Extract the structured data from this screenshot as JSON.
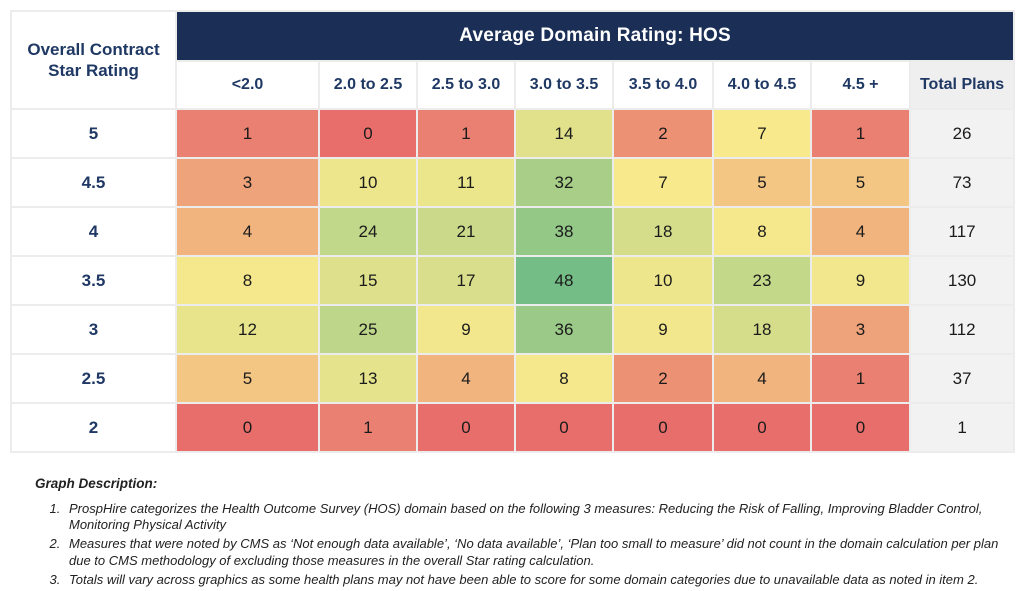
{
  "chart_data": {
    "type": "heatmap",
    "title": "Average Domain Rating: HOS",
    "row_axis_label": "Overall Contract Star Rating",
    "columns": [
      "<2.0",
      "2.0 to 2.5",
      "2.5 to 3.0",
      "3.0 to 3.5",
      "3.5 to 4.0",
      "4.0 to 4.5",
      "4.5 +"
    ],
    "total_column_label": "Total Plans",
    "rows": [
      "5",
      "4.5",
      "4",
      "3.5",
      "3",
      "2.5",
      "2"
    ],
    "values": [
      [
        1,
        0,
        1,
        14,
        2,
        7,
        1
      ],
      [
        3,
        10,
        11,
        32,
        7,
        5,
        5
      ],
      [
        4,
        24,
        21,
        38,
        18,
        8,
        4
      ],
      [
        8,
        15,
        17,
        48,
        10,
        23,
        9
      ],
      [
        12,
        25,
        9,
        36,
        9,
        18,
        3
      ],
      [
        5,
        13,
        4,
        8,
        2,
        4,
        1
      ],
      [
        0,
        1,
        0,
        0,
        0,
        0,
        0
      ]
    ],
    "totals": [
      26,
      73,
      117,
      130,
      112,
      37,
      1
    ],
    "color_scale": {
      "min_value": 0,
      "min_color": "#E86E6C",
      "mid_value": 7,
      "mid_color": "#F8E98C",
      "max_value": 48,
      "max_color": "#74BD86"
    },
    "legend_position": "none",
    "grid": true
  },
  "footnotes": {
    "heading": "Graph Description:",
    "items": [
      "ProspHire categorizes the Health Outcome Survey (HOS) domain based on the following 3 measures: Reducing the Risk of Falling, Improving Bladder Control, Monitoring Physical Activity",
      "Measures that were noted by CMS as ‘Not enough data available’, ‘No data available’, ‘Plan too small to measure’ did not count in the domain calculation per plan due to CMS methodology of excluding those measures in the overall Star rating calculation.",
      "Totals will vary across graphics as some health plans may not have been able to score for some domain categories due to unavailable data as noted in item 2."
    ]
  },
  "colors": {
    "banner_bg": "#1B2F56",
    "header_text": "#1F3864",
    "grid_border": "#ECECEC",
    "total_header_bg": "#EFEFEF",
    "total_cell_bg": "#F2F2F2",
    "cell_text": "#1B1B1B"
  }
}
